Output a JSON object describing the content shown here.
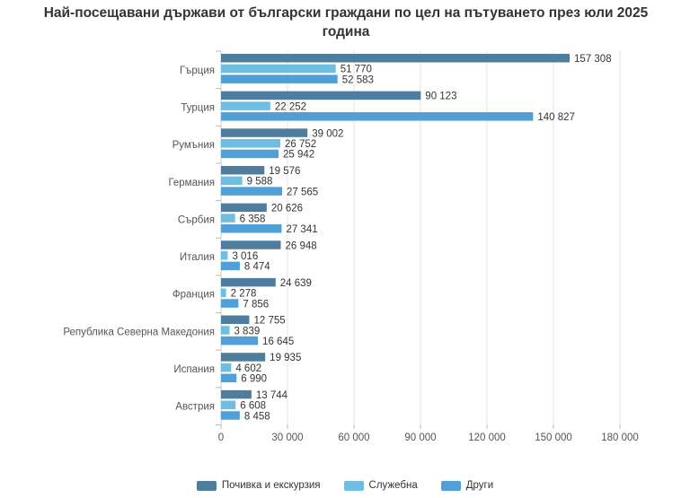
{
  "chart_data": {
    "type": "bar",
    "orientation": "horizontal",
    "title": "Най-посещавани държави от български граждани по цел на пътуването през юли 2025 година",
    "categories": [
      "Гърция",
      "Турция",
      "Румъния",
      "Германия",
      "Сърбия",
      "Италия",
      "Франция",
      "Република Северна Македония",
      "Испания",
      "Австрия"
    ],
    "series": [
      {
        "name": "Почивка и екскурзия",
        "color": "#4e7d9e",
        "values": [
          157308,
          90123,
          39002,
          19576,
          20626,
          26948,
          24639,
          12755,
          19935,
          13744
        ]
      },
      {
        "name": "Служебна",
        "color": "#6fbde0",
        "values": [
          51770,
          22252,
          26752,
          9588,
          6358,
          3016,
          2278,
          3839,
          4602,
          6608
        ]
      },
      {
        "name": "Други",
        "color": "#509fd6",
        "values": [
          52583,
          140827,
          25942,
          27565,
          27341,
          8474,
          7856,
          16645,
          6990,
          8458
        ]
      }
    ],
    "value_labels": [
      [
        "157 308",
        "90 123",
        "39 002",
        "19 576",
        "20 626",
        "26 948",
        "24 639",
        "12 755",
        "19 935",
        "13 744"
      ],
      [
        "51 770",
        "22 252",
        "26 752",
        "9 588",
        "6 358",
        "3 016",
        "2 278",
        "3 839",
        "4 602",
        "6 608"
      ],
      [
        "52 583",
        "140 827",
        "25 942",
        "27 565",
        "27 341",
        "8 474",
        "7 856",
        "16 645",
        "6 990",
        "8 458"
      ]
    ],
    "xlim": [
      0,
      180000
    ],
    "xticks": [
      0,
      30000,
      60000,
      90000,
      120000,
      150000,
      180000
    ],
    "xtick_labels": [
      "0",
      "30 000",
      "60 000",
      "90 000",
      "120 000",
      "150 000",
      "180 000"
    ],
    "grid": true,
    "legend_position": "bottom"
  }
}
